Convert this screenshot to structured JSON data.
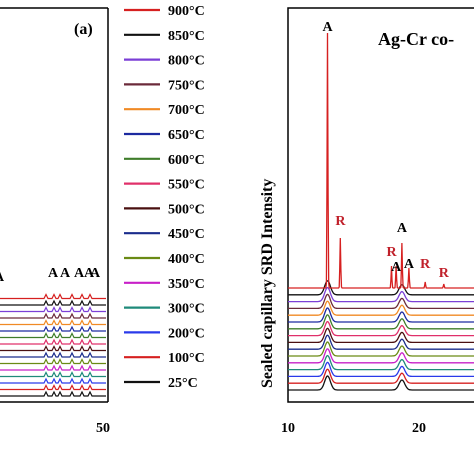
{
  "chart_data": [
    {
      "panel_label": "(a)",
      "type": "line",
      "x_ticks": [
        "50"
      ],
      "peak_labels": [
        "A",
        "A",
        "A",
        "A",
        "A",
        "A"
      ],
      "series": [
        {
          "name": "900°C",
          "color": "#d62020"
        },
        {
          "name": "850°C",
          "color": "#111111"
        },
        {
          "name": "800°C",
          "color": "#7b3fd6"
        },
        {
          "name": "750°C",
          "color": "#6b2a3a"
        },
        {
          "name": "700°C",
          "color": "#f08a24"
        },
        {
          "name": "650°C",
          "color": "#1c2aa0"
        },
        {
          "name": "600°C",
          "color": "#3f7d2a"
        },
        {
          "name": "550°C",
          "color": "#e0306a"
        },
        {
          "name": "500°C",
          "color": "#4a1010"
        },
        {
          "name": "450°C",
          "color": "#1a2c8c"
        },
        {
          "name": "400°C",
          "color": "#6a8a14"
        },
        {
          "name": "350°C",
          "color": "#c820c8"
        },
        {
          "name": "300°C",
          "color": "#1f8a7a"
        },
        {
          "name": "200°C",
          "color": "#2a3aea"
        },
        {
          "name": "100°C",
          "color": "#d62020"
        },
        {
          "name": "25°C",
          "color": "#111111"
        }
      ]
    },
    {
      "type": "line",
      "title": "Ag-Cr co-",
      "ylabel": "Sealed capillary SRD Intensity",
      "x_ticks": [
        "10",
        "20"
      ],
      "xlim": [
        10,
        26
      ],
      "peaks_A": [
        {
          "x": 13.4,
          "label": "A",
          "color": "#000000"
        },
        {
          "x": 19.3,
          "label": "A",
          "color": "#000000"
        },
        {
          "x": 19.8,
          "label": "A",
          "color": "#000000"
        },
        {
          "x": 20.4,
          "label": "A",
          "color": "#000000"
        }
      ],
      "peaks_R": [
        {
          "x": 14.5,
          "label": "R",
          "color": "#c0202a"
        },
        {
          "x": 18.9,
          "label": "R",
          "color": "#c0202a"
        },
        {
          "x": 21.8,
          "label": "R",
          "color": "#c0202a"
        },
        {
          "x": 23.4,
          "label": "R",
          "color": "#c0202a"
        }
      ]
    }
  ]
}
